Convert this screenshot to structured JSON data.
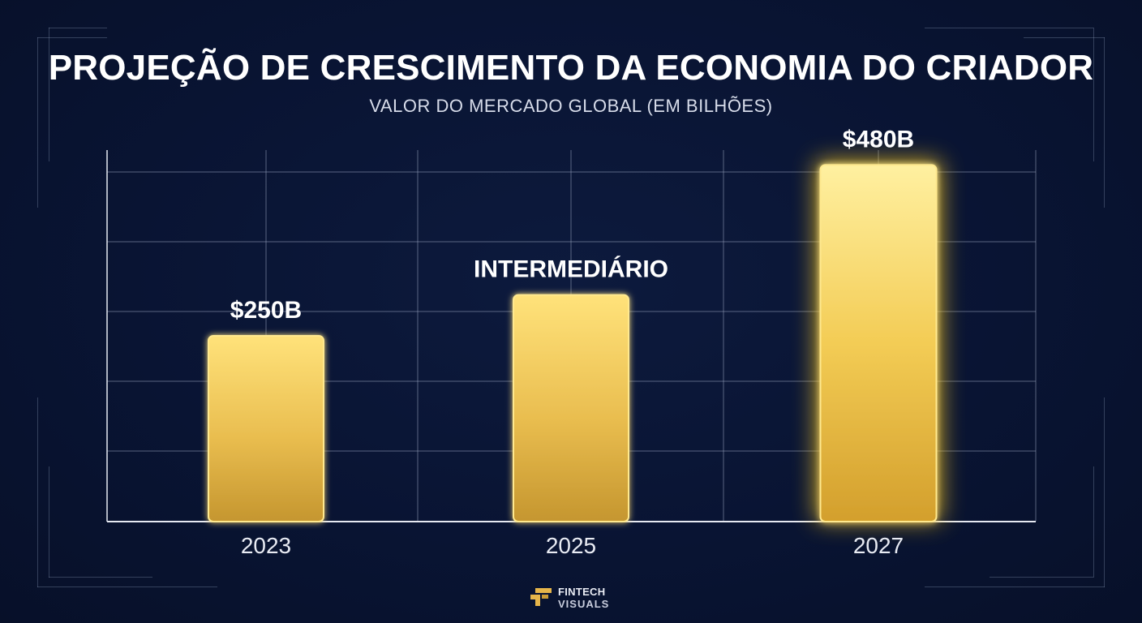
{
  "header": {
    "title": "PROJEÇÃO DE CRESCIMENTO DA ECONOMIA DO CRIADOR",
    "subtitle": "VALOR DO MERCADO GLOBAL (EM BILHÕES)"
  },
  "chart_data": {
    "type": "bar",
    "categories": [
      "2023",
      "2025",
      "2027"
    ],
    "values": [
      250,
      305,
      480
    ],
    "value_labels": [
      "$250B",
      "INTERMEDIÁRIO",
      "$480B"
    ],
    "title": "PROJEÇÃO DE CRESCIMENTO DA ECONOMIA DO CRIADOR",
    "subtitle": "VALOR DO MERCADO GLOBAL (EM BILHÕES)",
    "xlabel": "",
    "ylabel": "",
    "ylim": [
      0,
      500
    ],
    "grid": true,
    "legend": "none",
    "highlighted_category": "2027",
    "colors": {
      "bar_top": "#ffe27a",
      "bar_bottom": "#c5962f",
      "bar_border": "#ffe98f",
      "glow": "#ffcc1f",
      "grid": "#9aa6c0",
      "axis": "#e6e9f2",
      "text": "#ffffff"
    }
  },
  "footer": {
    "logo_line1": "FINTECH",
    "logo_line2": "VISUALS"
  }
}
